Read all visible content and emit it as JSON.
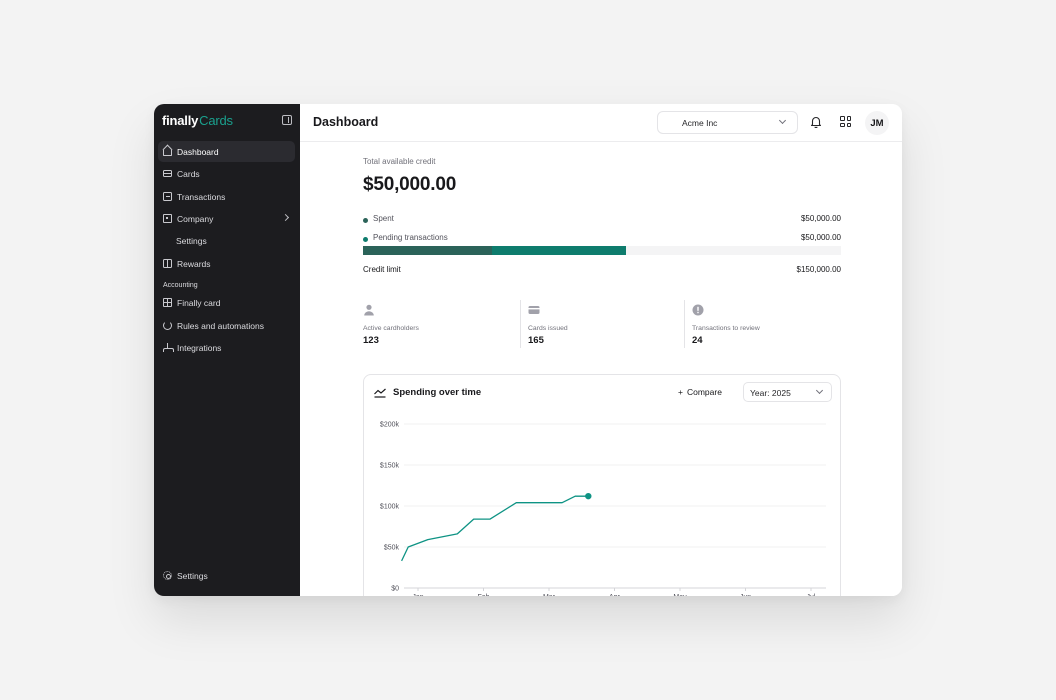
{
  "brand": {
    "part1": "finally",
    "part2": "Cards"
  },
  "sidebar": {
    "items": [
      {
        "label": "Dashboard",
        "icon": "home-icon"
      },
      {
        "label": "Cards",
        "icon": "card-icon"
      },
      {
        "label": "Transactions",
        "icon": "transactions-icon"
      },
      {
        "label": "Company",
        "icon": "building-icon"
      },
      {
        "label": "Settings"
      },
      {
        "label": "Rewards",
        "icon": "gift-icon"
      }
    ],
    "section_label": "Accounting",
    "accounting_items": [
      {
        "label": "Finally card",
        "icon": "ledger-icon"
      },
      {
        "label": "Rules and automations",
        "icon": "refresh-icon"
      },
      {
        "label": "Integrations",
        "icon": "integrations-icon"
      }
    ],
    "footer_settings": "Settings"
  },
  "header": {
    "title": "Dashboard",
    "org": "Acme Inc",
    "avatar": "JM"
  },
  "credit": {
    "label": "Total available credit",
    "value": "$50,000.00",
    "spent_label": "Spent",
    "spent_value": "$50,000.00",
    "pending_label": "Pending transactions",
    "pending_value": "$50,000.00",
    "limit_label": "Credit limit",
    "limit_value": "$150,000.00",
    "spent_fraction": 0.27,
    "pending_fraction": 0.28,
    "colors": {
      "spent": "#2b6359",
      "pending": "#0e7c6d",
      "track": "#f4f4f5"
    }
  },
  "stats": [
    {
      "label": "Active cardholders",
      "value": "123",
      "icon": "user-icon"
    },
    {
      "label": "Cards issued",
      "value": "165",
      "icon": "card-icon"
    },
    {
      "label": "Transactions to review",
      "value": "24",
      "icon": "alert-icon"
    }
  ],
  "chart": {
    "title": "Spending over time",
    "compare_label": "Compare",
    "year_label": "Year: 2025"
  },
  "chart_data": {
    "type": "line",
    "title": "Spending over time",
    "x_labels": [
      "Jan",
      "Feb",
      "Mar",
      "Apr",
      "May",
      "Jun",
      "Jul"
    ],
    "y_ticks": [
      "$0",
      "$50k",
      "$100k",
      "$150k",
      "$200k"
    ],
    "ylim": [
      0,
      200000
    ],
    "grid": true,
    "series": [
      {
        "color": "#0e9384",
        "points": [
          [
            -0.25,
            33000
          ],
          [
            -0.15,
            50000
          ],
          [
            0.15,
            59000
          ],
          [
            0.6,
            66000
          ],
          [
            0.85,
            84000
          ],
          [
            1.1,
            84000
          ],
          [
            1.5,
            104000
          ],
          [
            1.75,
            104000
          ],
          [
            2.2,
            104000
          ],
          [
            2.4,
            112000
          ],
          [
            2.6,
            112000
          ]
        ]
      }
    ]
  }
}
